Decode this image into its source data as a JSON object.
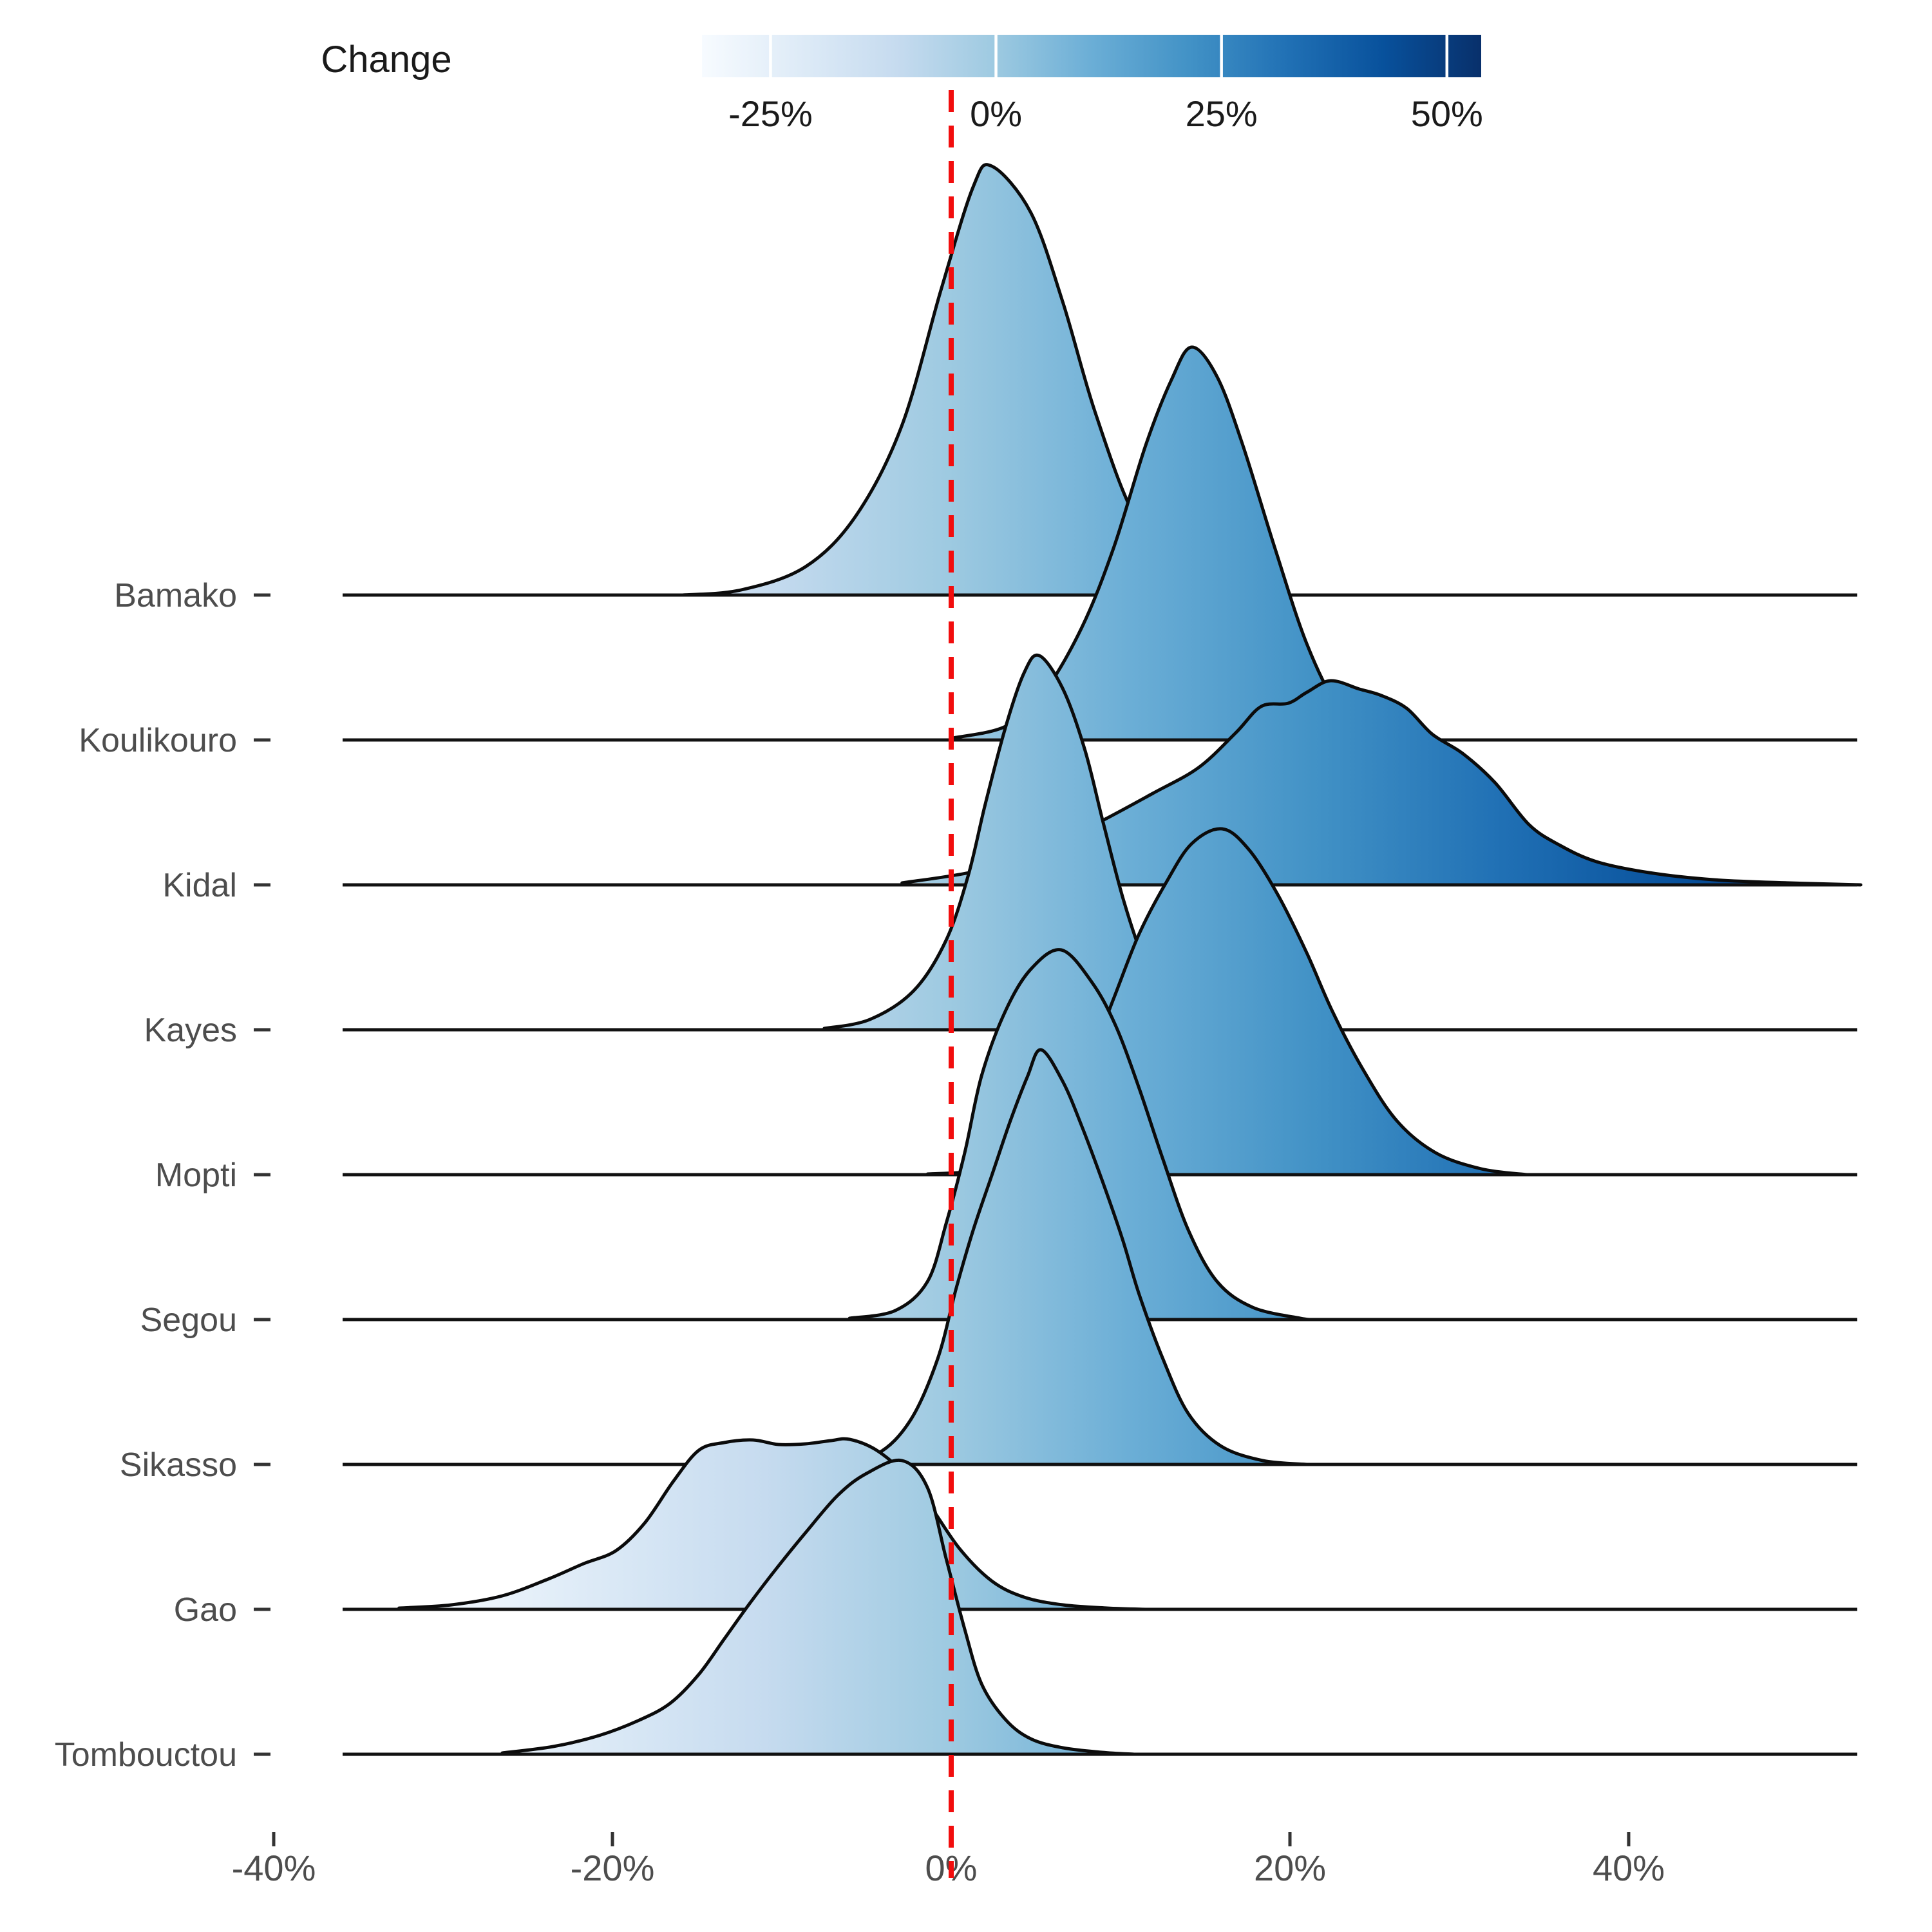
{
  "legend": {
    "title": "Change",
    "tick_labels": [
      "-25%",
      "0%",
      "25%",
      "50%"
    ],
    "tick_values": [
      -25,
      0,
      25,
      50
    ],
    "min_value": -32.6,
    "max_value": 53.8,
    "colormap": "Blues",
    "colors": [
      "#f7fbff",
      "#deebf7",
      "#c6dbef",
      "#9ecae1",
      "#6baed6",
      "#4292c6",
      "#2171b5",
      "#08519c",
      "#08306b"
    ],
    "tick_mark_color": "#ffffff"
  },
  "x_axis": {
    "tick_labels": [
      "-40%",
      "-20%",
      "0%",
      "20%",
      "40%"
    ],
    "tick_values": [
      -40,
      -20,
      0,
      20,
      40
    ],
    "text_color": "#4d4d4d"
  },
  "y_axis": {
    "text_color": "#4d4d4d"
  },
  "reference_line": {
    "value": 0,
    "color": "#f20d0d",
    "style": "dashed"
  },
  "chart_data": {
    "type": "area",
    "subtype": "ridgeline-density",
    "title": "",
    "xlabel": "Change",
    "ylabel": "",
    "xlim": [
      -40,
      55
    ],
    "legend_position": "top",
    "grid": false,
    "categories": [
      "Bamako",
      "Koulikouro",
      "Kidal",
      "Kayes",
      "Mopti",
      "Segou",
      "Sikasso",
      "Gao",
      "Tombouctou"
    ],
    "modes_pct": [
      2.0,
      14.2,
      22.4,
      5.2,
      16.0,
      6.5,
      5.1,
      -6.0,
      -2.9
    ],
    "series": [
      {
        "name": "Bamako",
        "mode_pct": 2.0,
        "points": [
          [
            -15.9,
            0
          ],
          [
            -12.4,
            8
          ],
          [
            -8.6,
            44
          ],
          [
            -5.6,
            124
          ],
          [
            -2.9,
            264
          ],
          [
            -0.6,
            474
          ],
          [
            1.3,
            634
          ],
          [
            2.4,
            666
          ],
          [
            4.7,
            594
          ],
          [
            6.6,
            454
          ],
          [
            8.5,
            284
          ],
          [
            10.8,
            124
          ],
          [
            13.4,
            40
          ],
          [
            16.5,
            8
          ],
          [
            19.7,
            0
          ]
        ]
      },
      {
        "name": "Koulikouro",
        "mode_pct": 14.2,
        "points": [
          [
            0.1,
            3
          ],
          [
            3.2,
            21
          ],
          [
            5.4,
            71
          ],
          [
            7.7,
            174
          ],
          [
            9.6,
            299
          ],
          [
            11.5,
            459
          ],
          [
            13.0,
            559
          ],
          [
            14.2,
            610
          ],
          [
            15.7,
            564
          ],
          [
            17.2,
            459
          ],
          [
            19.1,
            299
          ],
          [
            21.0,
            149
          ],
          [
            22.9,
            49
          ],
          [
            24.8,
            9
          ],
          [
            26.3,
            0
          ]
        ]
      },
      {
        "name": "Kidal",
        "mode_pct": 22.4,
        "points": [
          [
            -2.9,
            3
          ],
          [
            1.6,
            22
          ],
          [
            5.4,
            56
          ],
          [
            8.5,
            94
          ],
          [
            11.9,
            142
          ],
          [
            14.6,
            182
          ],
          [
            16.8,
            236
          ],
          [
            18.3,
            277
          ],
          [
            19.9,
            282
          ],
          [
            21.0,
            299
          ],
          [
            22.4,
            317
          ],
          [
            24.1,
            304
          ],
          [
            25.4,
            294
          ],
          [
            26.9,
            274
          ],
          [
            28.4,
            234
          ],
          [
            30.2,
            204
          ],
          [
            32.1,
            159
          ],
          [
            34.1,
            94
          ],
          [
            35.9,
            62
          ],
          [
            38.1,
            36
          ],
          [
            41.2,
            19
          ],
          [
            45.0,
            8
          ],
          [
            49.5,
            3
          ],
          [
            53.7,
            0
          ]
        ]
      },
      {
        "name": "Kayes",
        "mode_pct": 5.2,
        "points": [
          [
            -7.5,
            2
          ],
          [
            -4.8,
            16
          ],
          [
            -2.2,
            61
          ],
          [
            -0.3,
            139
          ],
          [
            1.0,
            239
          ],
          [
            2.0,
            349
          ],
          [
            3.2,
            469
          ],
          [
            4.3,
            554
          ],
          [
            5.2,
            581
          ],
          [
            6.6,
            529
          ],
          [
            7.9,
            434
          ],
          [
            9.0,
            319
          ],
          [
            10.2,
            199
          ],
          [
            11.5,
            99
          ],
          [
            12.7,
            39
          ],
          [
            13.8,
            9
          ],
          [
            14.8,
            0
          ]
        ]
      },
      {
        "name": "Mopti",
        "mode_pct": 16.0,
        "points": [
          [
            -1.4,
            1
          ],
          [
            1.6,
            6
          ],
          [
            3.9,
            24
          ],
          [
            6.2,
            84
          ],
          [
            8.1,
            174
          ],
          [
            9.6,
            274
          ],
          [
            11.1,
            374
          ],
          [
            12.7,
            454
          ],
          [
            14.2,
            514
          ],
          [
            16.0,
            537
          ],
          [
            17.6,
            504
          ],
          [
            19.3,
            434
          ],
          [
            21.0,
            344
          ],
          [
            22.5,
            254
          ],
          [
            24.3,
            164
          ],
          [
            26.3,
            84
          ],
          [
            28.6,
            34
          ],
          [
            31.3,
            9
          ],
          [
            34.0,
            0
          ]
        ]
      },
      {
        "name": "Segou",
        "mode_pct": 6.5,
        "points": [
          [
            -6.0,
            2
          ],
          [
            -3.3,
            14
          ],
          [
            -1.4,
            59
          ],
          [
            -0.3,
            149
          ],
          [
            0.8,
            259
          ],
          [
            1.8,
            379
          ],
          [
            3.2,
            479
          ],
          [
            4.7,
            544
          ],
          [
            6.5,
            574
          ],
          [
            8.3,
            524
          ],
          [
            9.7,
            457
          ],
          [
            11.1,
            359
          ],
          [
            12.5,
            249
          ],
          [
            14.0,
            139
          ],
          [
            15.7,
            59
          ],
          [
            17.8,
            19
          ],
          [
            20.6,
            2
          ],
          [
            21.4,
            0
          ]
        ]
      },
      {
        "name": "Sikasso",
        "mode_pct": 5.1,
        "points": [
          [
            -7.1,
            2
          ],
          [
            -4.4,
            16
          ],
          [
            -2.4,
            69
          ],
          [
            -0.8,
            164
          ],
          [
            0.3,
            274
          ],
          [
            1.3,
            364
          ],
          [
            2.4,
            449
          ],
          [
            3.5,
            534
          ],
          [
            4.5,
            602
          ],
          [
            5.3,
            644
          ],
          [
            6.6,
            594
          ],
          [
            7.7,
            526
          ],
          [
            8.9,
            442
          ],
          [
            10.1,
            351
          ],
          [
            11.1,
            264
          ],
          [
            12.5,
            164
          ],
          [
            14.0,
            79
          ],
          [
            15.9,
            29
          ],
          [
            18.4,
            6
          ],
          [
            21.0,
            0
          ]
        ]
      },
      {
        "name": "Gao",
        "mode_pct": -6.0,
        "points": [
          [
            -32.6,
            2
          ],
          [
            -29.5,
            7
          ],
          [
            -26.5,
            21
          ],
          [
            -23.8,
            47
          ],
          [
            -21.7,
            71
          ],
          [
            -19.8,
            91
          ],
          [
            -18.1,
            134
          ],
          [
            -16.4,
            199
          ],
          [
            -14.9,
            247
          ],
          [
            -13.4,
            259
          ],
          [
            -11.7,
            263
          ],
          [
            -10.2,
            256
          ],
          [
            -8.6,
            257
          ],
          [
            -7.1,
            262
          ],
          [
            -6.0,
            264
          ],
          [
            -4.4,
            247
          ],
          [
            -2.7,
            209
          ],
          [
            -1.2,
            159
          ],
          [
            0.5,
            94
          ],
          [
            2.4,
            44
          ],
          [
            4.3,
            19
          ],
          [
            6.6,
            7
          ],
          [
            9.2,
            2
          ],
          [
            11.5,
            0
          ]
        ]
      },
      {
        "name": "Tombouctou",
        "mode_pct": -2.9,
        "points": [
          [
            -26.5,
            2
          ],
          [
            -23.5,
            12
          ],
          [
            -20.8,
            29
          ],
          [
            -18.5,
            52
          ],
          [
            -16.6,
            79
          ],
          [
            -14.9,
            124
          ],
          [
            -13.4,
            179
          ],
          [
            -11.9,
            234
          ],
          [
            -10.3,
            289
          ],
          [
            -8.6,
            344
          ],
          [
            -6.7,
            402
          ],
          [
            -5.0,
            436
          ],
          [
            -2.9,
            456
          ],
          [
            -1.4,
            414
          ],
          [
            -0.3,
            304
          ],
          [
            0.8,
            194
          ],
          [
            1.8,
            109
          ],
          [
            3.2,
            54
          ],
          [
            4.7,
            24
          ],
          [
            6.6,
            10
          ],
          [
            8.9,
            3
          ],
          [
            10.8,
            0
          ]
        ]
      }
    ]
  }
}
